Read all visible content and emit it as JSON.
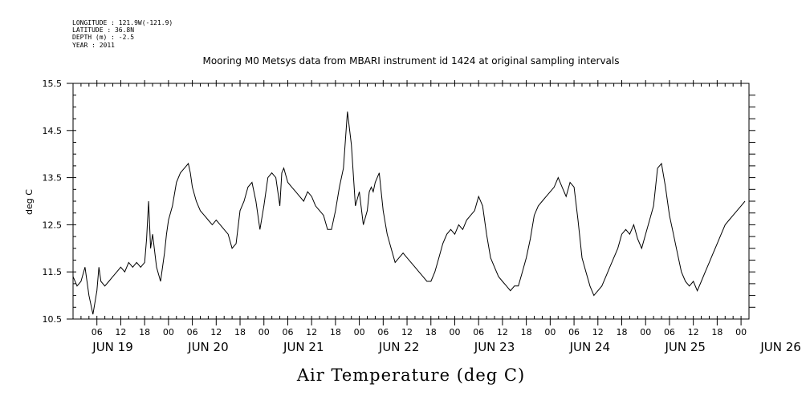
{
  "meta": {
    "longitude": "LONGITUDE : 121.9W(-121.9)",
    "latitude": "LATITUDE : 36.8N",
    "depth": "DEPTH (m) : -2.5",
    "year": "YEAR : 2011"
  },
  "chart_data": {
    "type": "line",
    "title": "Mooring M0 Metsys data from MBARI instrument id 1424 at original sampling intervals",
    "xlabel": "Air Temperature (deg C)",
    "ylabel": "deg C",
    "ylim": [
      10.5,
      15.5
    ],
    "xlim_hours": [
      0,
      170
    ],
    "x_origin": "JUN 19 00:00, 2011",
    "y_ticks": [
      "10.5",
      "11.5",
      "12.5",
      "13.5",
      "14.5",
      "15.5"
    ],
    "hour_ticks": [
      "06",
      "12",
      "18",
      "00",
      "06",
      "12",
      "18",
      "00",
      "06",
      "12",
      "18",
      "00",
      "06",
      "12",
      "18",
      "00",
      "06",
      "12",
      "18",
      "00",
      "06",
      "12",
      "18",
      "00",
      "06",
      "12",
      "18",
      "00"
    ],
    "day_labels": [
      "JUN 19",
      "JUN 20",
      "JUN 21",
      "JUN 22",
      "JUN 23",
      "JUN 24",
      "JUN 25",
      "JUN 26"
    ],
    "series": [
      {
        "name": "Air Temperature",
        "x_hours": [
          0,
          1,
          2,
          3,
          4,
          5,
          6,
          6.5,
          7,
          8,
          9,
          10,
          11,
          12,
          13,
          14,
          15,
          16,
          17,
          18,
          18.5,
          19,
          19.5,
          20,
          21,
          22,
          23,
          23.5,
          24,
          25,
          26,
          27,
          28,
          29,
          29.5,
          30,
          31,
          32,
          33,
          34,
          35,
          36,
          37,
          38,
          39,
          40,
          41,
          42,
          43,
          44,
          45,
          46,
          47,
          48,
          49,
          50,
          51,
          52,
          52.5,
          53,
          54,
          55,
          56,
          57,
          58,
          59,
          60,
          61,
          62,
          63,
          64,
          65,
          66,
          67,
          68,
          69,
          70,
          71,
          72,
          73,
          74,
          74.5,
          75,
          75.5,
          76,
          77,
          78,
          79,
          80,
          81,
          82,
          83,
          84,
          85,
          86,
          87,
          88,
          89,
          90,
          91,
          92,
          93,
          94,
          95,
          96,
          97,
          98,
          99,
          100,
          101,
          102,
          103,
          104,
          105,
          106,
          107,
          108,
          109,
          110,
          111,
          112,
          113,
          114,
          115,
          116,
          117,
          118,
          119,
          120,
          121,
          122,
          123,
          124,
          125,
          126,
          127,
          128,
          129,
          130,
          131,
          132,
          133,
          134,
          135,
          136,
          137,
          138,
          139,
          140,
          141,
          142,
          143,
          144,
          145,
          146,
          147,
          148,
          149,
          150,
          151,
          152,
          153,
          154,
          155,
          156,
          157,
          158,
          159,
          160,
          161,
          162,
          163,
          164,
          165,
          166,
          167,
          168,
          169
        ],
        "values": [
          11.4,
          11.2,
          11.3,
          11.6,
          11.0,
          10.6,
          11.1,
          11.6,
          11.3,
          11.2,
          11.3,
          11.4,
          11.5,
          11.6,
          11.5,
          11.7,
          11.6,
          11.7,
          11.6,
          11.7,
          12.2,
          13.0,
          12.0,
          12.3,
          11.6,
          11.3,
          11.9,
          12.3,
          12.6,
          12.9,
          13.4,
          13.6,
          13.7,
          13.8,
          13.6,
          13.3,
          13.0,
          12.8,
          12.7,
          12.6,
          12.5,
          12.6,
          12.5,
          12.4,
          12.3,
          12.0,
          12.1,
          12.8,
          13.0,
          13.3,
          13.4,
          13.0,
          12.4,
          12.9,
          13.5,
          13.6,
          13.5,
          12.9,
          13.6,
          13.7,
          13.4,
          13.3,
          13.2,
          13.1,
          13.0,
          13.2,
          13.1,
          12.9,
          12.8,
          12.7,
          12.4,
          12.4,
          12.8,
          13.3,
          13.7,
          14.9,
          14.2,
          12.9,
          13.2,
          12.5,
          12.8,
          13.2,
          13.3,
          13.2,
          13.4,
          13.6,
          12.8,
          12.3,
          12.0,
          11.7,
          11.8,
          11.9,
          11.8,
          11.7,
          11.6,
          11.5,
          11.4,
          11.3,
          11.3,
          11.5,
          11.8,
          12.1,
          12.3,
          12.4,
          12.3,
          12.5,
          12.4,
          12.6,
          12.7,
          12.8,
          13.1,
          12.9,
          12.3,
          11.8,
          11.6,
          11.4,
          11.3,
          11.2,
          11.1,
          11.2,
          11.2,
          11.5,
          11.8,
          12.2,
          12.7,
          12.9,
          13.0,
          13.1,
          13.2,
          13.3,
          13.5,
          13.3,
          13.1,
          13.4,
          13.3,
          12.6,
          11.8,
          11.5,
          11.2,
          11.0,
          11.1,
          11.2,
          11.4,
          11.6,
          11.8,
          12.0,
          12.3,
          12.4,
          12.3,
          12.5,
          12.2,
          12.0,
          12.3,
          12.6,
          12.9,
          13.7,
          13.8,
          13.3,
          12.7,
          12.3,
          11.9,
          11.5,
          11.3,
          11.2,
          11.3,
          11.1,
          11.3,
          11.5,
          11.7,
          11.9,
          12.1,
          12.3,
          12.5,
          12.6,
          12.7,
          12.8,
          12.9,
          13.0
        ]
      }
    ]
  }
}
